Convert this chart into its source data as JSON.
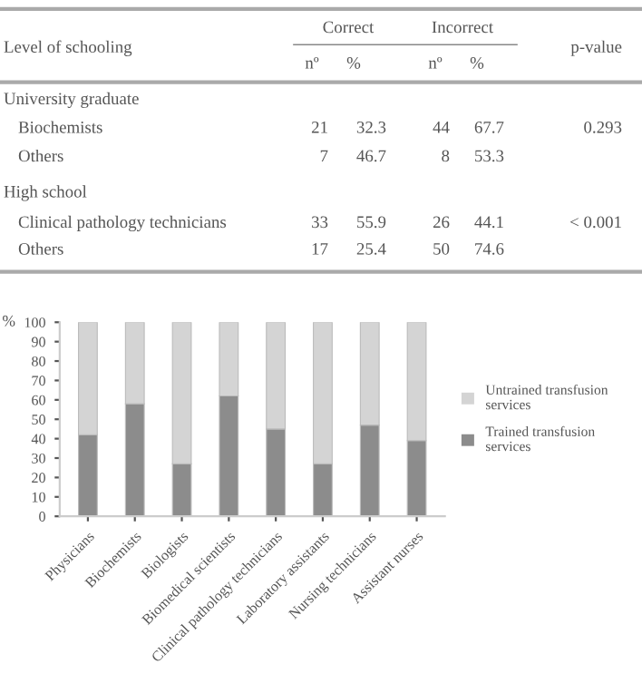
{
  "chart_data": [
    {
      "type": "other",
      "annotations": [
        "Level of schooling",
        "Correct",
        "Incorrect",
        "p-value",
        "nº",
        "%",
        "nº",
        "%",
        "University graduate",
        "Biochemists",
        "21",
        "32.3",
        "44",
        "67.7",
        "0.293",
        "Others",
        "7",
        "46.7",
        "8",
        "53.3",
        "High school",
        "Clinical pathology technicians",
        "33",
        "55.9",
        "26",
        "44.1",
        "< 0.001",
        "Others",
        "17",
        "25.4",
        "50",
        "74.6"
      ]
    },
    {
      "type": "bar",
      "stacked": true,
      "ylabel": "%",
      "categories": [
        "Physicians",
        "Biochemists",
        "Biologists",
        "Biomedical scientists",
        "Clinical pathology technicians",
        "Laboratory assistants",
        "Nursing technicians",
        "Assistant nurses"
      ],
      "series": [
        {
          "name": "Trained transfusion services",
          "color": "#8c8c8c",
          "values": [
            42,
            58,
            27,
            62,
            45,
            27,
            47,
            39
          ]
        },
        {
          "name": "Untrained transfusion services",
          "color": "#d4d4d4",
          "values": [
            58,
            42,
            73,
            38,
            55,
            73,
            53,
            61
          ]
        }
      ],
      "ylim": [
        0,
        100
      ],
      "yticks": [
        0,
        10,
        20,
        30,
        40,
        50,
        60,
        70,
        80,
        90,
        100
      ],
      "grid": false,
      "legend": "right"
    }
  ]
}
